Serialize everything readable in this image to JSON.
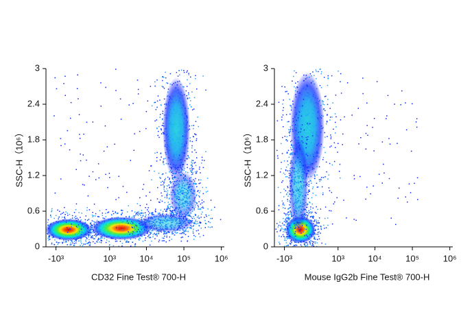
{
  "chart_data": [
    {
      "type": "density",
      "x_label": "CD32 Fine Test® 700-H",
      "y_label": "SSC-H（10⁶）",
      "xlim": [
        -1900,
        1200000
      ],
      "xticks": [
        {
          "value": -1000,
          "label": "-10³"
        },
        {
          "value": 1000,
          "label": "10³"
        },
        {
          "value": 10000,
          "label": "10⁴"
        },
        {
          "value": 100000,
          "label": "10⁵"
        },
        {
          "value": 1000000,
          "label": "10⁶"
        }
      ],
      "ylim": [
        0,
        3
      ],
      "yticks": [
        0,
        0.6,
        1.2,
        1.8,
        2.4,
        3
      ]
    },
    {
      "type": "density",
      "x_label": "Mouse IgG2b Fine Test® 700-H",
      "y_label": "SSC-H（10⁶）",
      "xlim": [
        -1900,
        1200000
      ],
      "xticks": [
        {
          "value": -1000,
          "label": "-10³"
        },
        {
          "value": 1000,
          "label": "10³"
        },
        {
          "value": 10000,
          "label": "10⁴"
        },
        {
          "value": 100000,
          "label": "10⁵"
        },
        {
          "value": 1000000,
          "label": "10⁶"
        }
      ],
      "ylim": [
        0,
        3
      ],
      "yticks": [
        0,
        0.6,
        1.2,
        1.8,
        2.4,
        3
      ]
    }
  ]
}
